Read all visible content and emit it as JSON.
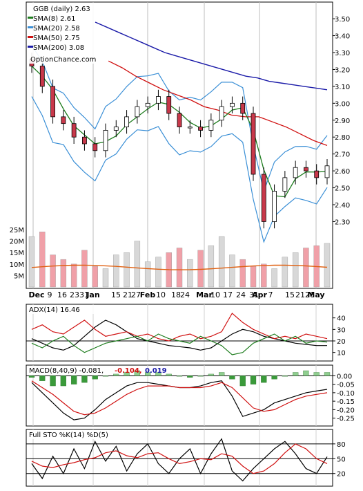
{
  "chart_data": [
    {
      "type": "line",
      "title": "GGB (daily) 2.63",
      "watermark": "OptionChance.com",
      "price_axis": {
        "ticks": [
          "3.50",
          "3.40",
          "3.30",
          "3.20",
          "3.10",
          "3.00",
          "2.90",
          "2.80",
          "2.70",
          "2.60",
          "2.50",
          "2.40",
          "2.30"
        ],
        "ylim": [
          2.22,
          3.57
        ]
      },
      "volume_axis": {
        "ticks": [
          "25M",
          "20M",
          "15M",
          "10M",
          "5M"
        ],
        "ylim": [
          0,
          28
        ]
      },
      "x_tick_labels": [
        "Dec",
        "9",
        "16",
        "23",
        "31",
        "Jan",
        "15",
        "21",
        "27",
        "Feb",
        "10",
        "18",
        "24",
        "Mar",
        "10",
        "17",
        "24",
        "31",
        "Apr",
        "7",
        "15",
        "21",
        "28",
        "May"
      ],
      "legend": [
        {
          "label": "SMA(8) 2.61",
          "color": "#1e7d1e"
        },
        {
          "label": "SMA(20) 2.58",
          "color": "#3a8fd6"
        },
        {
          "label": "SMA(50) 2.75",
          "color": "#d01010"
        },
        {
          "label": "SMA(200) 3.08",
          "color": "#1a1aa8"
        }
      ],
      "colors": {
        "up": "#ffffff",
        "down": "#c8384a",
        "hollow_down": "#a040a0",
        "sma8": "#1e7d1e",
        "sma20": "#3a8fd6",
        "sma50": "#d01010",
        "sma200": "#1a1aa8",
        "bollinger": "#3a8fd6",
        "bb_yellow": "#e8d21a",
        "volume": "#d8d8d8",
        "volume_red": "#f0a0a8",
        "volume_avg": "#e06010"
      },
      "sma200": [
        3.48,
        3.45,
        3.42,
        3.39,
        3.36,
        3.33,
        3.3,
        3.28,
        3.26,
        3.24,
        3.22,
        3.2,
        3.18,
        3.16,
        3.15,
        3.13,
        3.12,
        3.11,
        3.1,
        3.09,
        3.08
      ],
      "sma50": [
        null,
        null,
        null,
        null,
        3.25,
        3.21,
        3.16,
        3.12,
        3.08,
        3.05,
        3.02,
        2.98,
        2.96,
        2.93,
        2.92,
        2.92,
        2.89,
        2.86,
        2.82,
        2.78,
        2.75
      ],
      "close": [
        3.22,
        3.1,
        2.92,
        2.88,
        2.8,
        2.76,
        2.72,
        2.84,
        2.86,
        2.92,
        2.98,
        3.0,
        3.04,
        2.94,
        2.86,
        2.86,
        2.84,
        2.9,
        2.98,
        3.0,
        2.94,
        2.58,
        2.3,
        2.48,
        2.56,
        2.62,
        2.6,
        2.56,
        2.63
      ],
      "volume": [
        22,
        24,
        14,
        12,
        10,
        16,
        9,
        8,
        14,
        15,
        20,
        11,
        13,
        15,
        17,
        12,
        16,
        18,
        22,
        14,
        12,
        9,
        10,
        8,
        13,
        15,
        17,
        18,
        19
      ]
    },
    {
      "type": "line",
      "title": "ADX(14) 16.46",
      "axis_ticks": [
        "40",
        "30",
        "20",
        "10"
      ],
      "ylim": [
        5,
        47
      ],
      "reference_line": 20,
      "series": [
        {
          "name": "ADX",
          "color": "#000000",
          "values": [
            22,
            18,
            14,
            12,
            16,
            24,
            32,
            38,
            34,
            28,
            22,
            20,
            18,
            16,
            15,
            14,
            12,
            14,
            20,
            26,
            30,
            28,
            24,
            22,
            20,
            18,
            17,
            16,
            16
          ]
        },
        {
          "color": "#d01010",
          "values": [
            30,
            34,
            28,
            26,
            32,
            38,
            30,
            24,
            26,
            28,
            24,
            26,
            22,
            20,
            24,
            26,
            22,
            24,
            28,
            44,
            36,
            30,
            26,
            22,
            24,
            22,
            26,
            24,
            22
          ]
        },
        {
          "color": "#1e7d1e",
          "values": [
            18,
            14,
            20,
            24,
            16,
            10,
            14,
            18,
            20,
            22,
            24,
            20,
            26,
            22,
            20,
            18,
            24,
            20,
            16,
            8,
            10,
            18,
            22,
            26,
            20,
            24,
            18,
            20,
            19
          ]
        }
      ]
    },
    {
      "type": "bar",
      "title": "MACD(8,40,9) -0.081,",
      "value_labels": [
        {
          "text": "-0.104,",
          "color": "#d01010"
        },
        {
          "text": "0.019",
          "color": "#1a1aa8"
        }
      ],
      "axis_ticks": [
        "0.00",
        "-0.05",
        "-0.10",
        "-0.15",
        "-0.20",
        "-0.25"
      ],
      "ylim": [
        -0.28,
        0.03
      ],
      "zero_line": 0,
      "histogram": [
        -0.01,
        -0.03,
        -0.06,
        -0.06,
        -0.05,
        -0.04,
        -0.02,
        0.0,
        0.01,
        0.02,
        0.03,
        0.02,
        0.02,
        0.01,
        0.0,
        -0.01,
        0.0,
        0.01,
        0.02,
        -0.02,
        -0.06,
        -0.05,
        -0.04,
        -0.02,
        0.0,
        0.02,
        0.03,
        0.02,
        0.02
      ],
      "series": [
        {
          "color": "#000000",
          "values": [
            -0.04,
            -0.1,
            -0.16,
            -0.22,
            -0.26,
            -0.25,
            -0.2,
            -0.14,
            -0.1,
            -0.06,
            -0.04,
            -0.04,
            -0.05,
            -0.06,
            -0.07,
            -0.07,
            -0.06,
            -0.04,
            -0.03,
            -0.12,
            -0.24,
            -0.22,
            -0.2,
            -0.16,
            -0.14,
            -0.12,
            -0.1,
            -0.09,
            -0.08
          ]
        },
        {
          "color": "#d01010",
          "values": [
            -0.03,
            -0.07,
            -0.11,
            -0.16,
            -0.21,
            -0.23,
            -0.22,
            -0.19,
            -0.15,
            -0.11,
            -0.08,
            -0.06,
            -0.06,
            -0.06,
            -0.07,
            -0.07,
            -0.07,
            -0.06,
            -0.04,
            -0.07,
            -0.13,
            -0.19,
            -0.21,
            -0.2,
            -0.17,
            -0.14,
            -0.12,
            -0.11,
            -0.1
          ]
        }
      ]
    },
    {
      "type": "line",
      "title": "Full STO %K(14) %D(5)",
      "axis_ticks": [
        "80",
        "50",
        "20"
      ],
      "ylim": [
        0,
        98
      ],
      "reference_lines": [
        80,
        50,
        20
      ],
      "series": [
        {
          "name": "%K",
          "color": "#000000",
          "values": [
            40,
            10,
            55,
            20,
            70,
            30,
            85,
            45,
            75,
            25,
            60,
            80,
            40,
            20,
            50,
            70,
            20,
            60,
            90,
            25,
            5,
            30,
            50,
            70,
            85,
            60,
            30,
            20,
            54
          ]
        },
        {
          "name": "%D",
          "color": "#d01010",
          "values": [
            45,
            35,
            32,
            38,
            42,
            48,
            52,
            62,
            66,
            56,
            52,
            60,
            62,
            50,
            40,
            44,
            50,
            48,
            60,
            55,
            35,
            20,
            25,
            40,
            62,
            80,
            70,
            50,
            40
          ]
        }
      ]
    }
  ]
}
